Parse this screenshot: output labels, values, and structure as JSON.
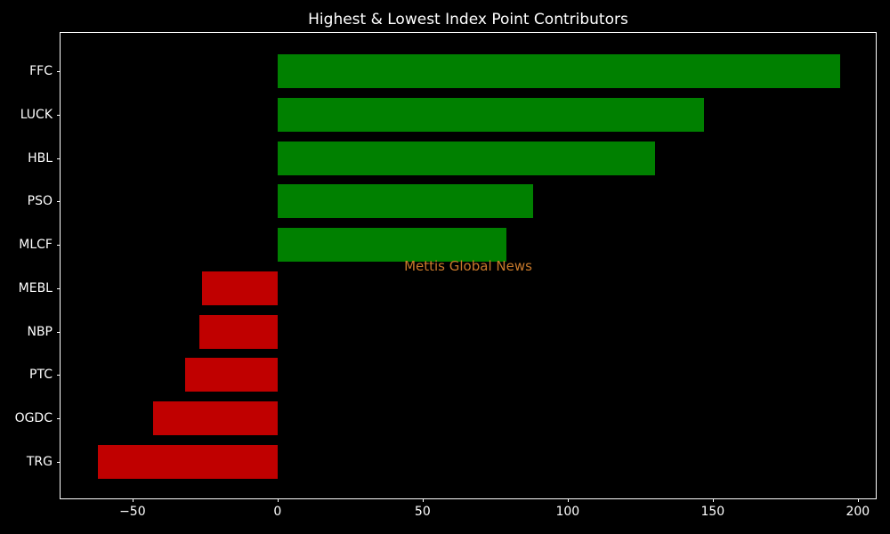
{
  "figure": {
    "background": "#000000",
    "text_color": "#ffffff",
    "spine_color": "#ffffff"
  },
  "chart_data": {
    "type": "bar",
    "orientation": "horizontal",
    "title": "Highest & Lowest Index Point Contributors",
    "categories": [
      "FFC",
      "LUCK",
      "HBL",
      "PSO",
      "MLCF",
      "MEBL",
      "NBP",
      "PTC",
      "OGDC",
      "TRG"
    ],
    "values": [
      194,
      147,
      130,
      88,
      79,
      -26,
      -27,
      -32,
      -43,
      -62
    ],
    "positive_color": "#008000",
    "negative_color": "#c00000",
    "xticks": [
      -50,
      0,
      50,
      100,
      150,
      200
    ],
    "xlim": [
      -74.8,
      206.8
    ],
    "ylim": [
      -0.89,
      9.89
    ],
    "bar_height_units": 0.78,
    "xlabel": "",
    "ylabel": "",
    "grid": false,
    "legend": null
  },
  "watermark": {
    "text": "Mettis Global News",
    "color": "#c8792b"
  }
}
